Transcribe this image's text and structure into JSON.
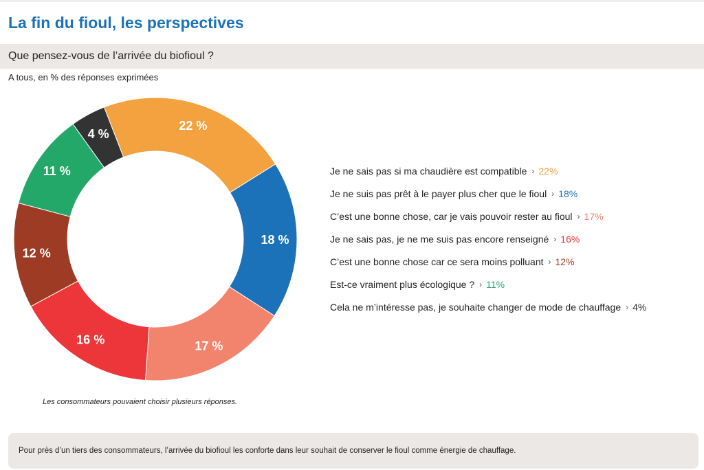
{
  "header": {
    "title": "La fin du fioul, les perspectives",
    "question": "Que pensez-vous de l’arrivée du biofioul ?",
    "base": "A tous, en % des réponses exprimées"
  },
  "colors": {
    "title": "#1a72b9",
    "orange": "#f4a13f",
    "blue": "#1b72b8",
    "salmon": "#f2846e",
    "red": "#ec3639",
    "brown": "#9e3b24",
    "green": "#23a86a",
    "dark": "#333333"
  },
  "chart_data": {
    "type": "pie",
    "variant": "donut",
    "unit": "%",
    "slices": [
      {
        "label": "Je ne sais pas si ma chaudière est compatible",
        "value": 22,
        "slice_text": "22 %",
        "legend_value": "22%",
        "color": "#f4a13f"
      },
      {
        "label": "Je ne suis pas prêt à le payer plus cher que le fioul",
        "value": 18,
        "slice_text": "18 %",
        "legend_value": "18%",
        "color": "#1b72b8"
      },
      {
        "label": "C’est une bonne chose, car je vais pouvoir rester au fioul",
        "value": 17,
        "slice_text": "17 %",
        "legend_value": "17%",
        "color": "#f2846e"
      },
      {
        "label": "Je ne sais pas, je ne me suis pas encore renseigné",
        "value": 16,
        "slice_text": "16 %",
        "legend_value": "16%",
        "color": "#ec3639"
      },
      {
        "label": "C’est une bonne chose car ce sera moins polluant",
        "value": 12,
        "slice_text": "12 %",
        "legend_value": "12%",
        "color": "#9e3b24"
      },
      {
        "label": "Est-ce vraiment plus écologique ?",
        "value": 11,
        "slice_text": "11 %",
        "legend_value": "11%",
        "color": "#23a86a"
      },
      {
        "label": "Cela ne m’intéresse pas, je souhaite changer de mode de chauffage",
        "value": 4,
        "slice_text": "4 %",
        "legend_value": "4%",
        "color": "#333333"
      }
    ],
    "legend_placement": "right"
  },
  "note": "Les consommateurs pouvaient choisir plusieurs réponses.",
  "conclusion": "Pour près d’un tiers des consommateurs, l’arrivée du biofioul les conforte dans leur souhait de conserver le fioul comme énergie de chauffage."
}
